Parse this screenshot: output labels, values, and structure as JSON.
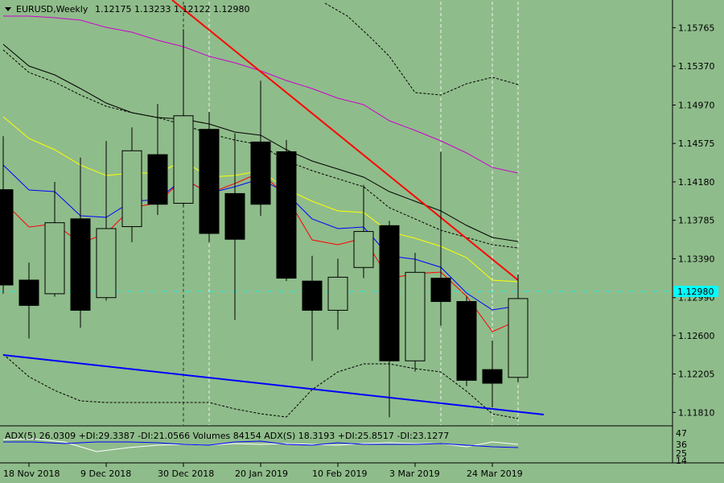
{
  "header": {
    "symbol_label": "EURUSD,Weekly",
    "ohlc_text": "1.12175 1.13233 1.12122 1.12980"
  },
  "indicator": {
    "text": "ADX(5) 26.0309 +DI:29.3387 -DI:21.0566  Volumes 84154  ADX(S) 18.3193 +DI:25.8517 -DI:23.1277",
    "scale_labels": [
      "47",
      "36",
      "25",
      "14"
    ]
  },
  "colors": {
    "background": "#8fbc8b",
    "bull_candle": "#8fbc8b",
    "bear_candle": "#000000",
    "trendline_red": "#ff0000",
    "trendline_blue": "#0000ff",
    "ma_black": "#000000",
    "ma_magenta": "#cc00cc",
    "ma_yellow": "#ffff00",
    "ma_blue": "#0000ff",
    "ma_red": "#ff0000",
    "current_price_line": "#00ffff"
  },
  "chart_data": {
    "type": "candlestick",
    "price_axis": [
      "1.15765",
      "1.15370",
      "1.14970",
      "1.14575",
      "1.14180",
      "1.13785",
      "1.13390",
      "1.12990",
      "1.12600",
      "1.12205",
      "1.11810"
    ],
    "current_price": "1.12980",
    "ylim": [
      1.1168,
      1.1605
    ],
    "date_labels": [
      "18 Nov 2018",
      "9 Dec 2018",
      "30 Dec 2018",
      "20 Jan 2019",
      "10 Feb 2019",
      "3 Mar 2019",
      "24 Mar 2019"
    ],
    "date_label_index": [
      1,
      4,
      7,
      10,
      13,
      16,
      19
    ],
    "candles": [
      {
        "o": 1.141,
        "h": 1.1465,
        "l": 1.1303,
        "c": 1.1312
      },
      {
        "o": 1.1317,
        "h": 1.1335,
        "l": 1.1257,
        "c": 1.1291
      },
      {
        "o": 1.1303,
        "h": 1.1418,
        "l": 1.13,
        "c": 1.1376
      },
      {
        "o": 1.138,
        "h": 1.1443,
        "l": 1.1268,
        "c": 1.1286
      },
      {
        "o": 1.1299,
        "h": 1.146,
        "l": 1.1296,
        "c": 1.137
      },
      {
        "o": 1.1372,
        "h": 1.1474,
        "l": 1.1356,
        "c": 1.145
      },
      {
        "o": 1.1446,
        "h": 1.1498,
        "l": 1.1384,
        "c": 1.1395
      },
      {
        "o": 1.1396,
        "h": 1.1575,
        "l": 1.1393,
        "c": 1.1486
      },
      {
        "o": 1.1472,
        "h": 1.149,
        "l": 1.1356,
        "c": 1.1365
      },
      {
        "o": 1.1406,
        "h": 1.1468,
        "l": 1.1276,
        "c": 1.1359
      },
      {
        "o": 1.1459,
        "h": 1.1522,
        "l": 1.1383,
        "c": 1.1395
      },
      {
        "o": 1.1449,
        "h": 1.1461,
        "l": 1.1316,
        "c": 1.1319
      },
      {
        "o": 1.1316,
        "h": 1.1342,
        "l": 1.1234,
        "c": 1.1286
      },
      {
        "o": 1.1286,
        "h": 1.1339,
        "l": 1.1266,
        "c": 1.132
      },
      {
        "o": 1.133,
        "h": 1.1415,
        "l": 1.1319,
        "c": 1.1367
      },
      {
        "o": 1.1373,
        "h": 1.1378,
        "l": 1.1176,
        "c": 1.1234
      },
      {
        "o": 1.1234,
        "h": 1.1345,
        "l": 1.1223,
        "c": 1.1325
      },
      {
        "o": 1.1319,
        "h": 1.1449,
        "l": 1.127,
        "c": 1.1295
      },
      {
        "o": 1.1295,
        "h": 1.13,
        "l": 1.1208,
        "c": 1.1214
      },
      {
        "o": 1.1225,
        "h": 1.1255,
        "l": 1.1186,
        "c": 1.1211
      },
      {
        "o": 1.1217,
        "h": 1.1323,
        "l": 1.1212,
        "c": 1.1298
      }
    ]
  }
}
